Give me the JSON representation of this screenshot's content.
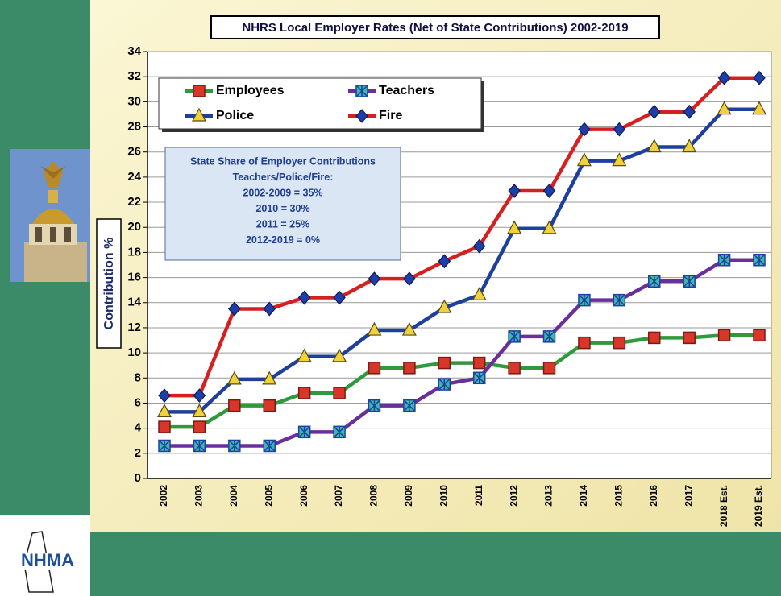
{
  "chart_data": {
    "type": "line",
    "title": "NHRS  Local Employer Rates (Net of State Contributions) 2002-2019",
    "y_label": "Contribution %",
    "categories": [
      "2002",
      "2003",
      "2004",
      "2005",
      "2006",
      "2007",
      "2008",
      "2009",
      "2010",
      "2011",
      "2012",
      "2013",
      "2014",
      "2015",
      "2016",
      "2017",
      "2018 Est.",
      "2019 Est."
    ],
    "series": [
      {
        "name": "Employees",
        "color": "#2f9a3c",
        "marker": "square",
        "marker_color": "#d8362a",
        "values": [
          4.1,
          4.1,
          5.8,
          5.8,
          6.8,
          6.8,
          8.8,
          8.8,
          9.2,
          9.2,
          8.8,
          8.8,
          10.8,
          10.8,
          11.2,
          11.2,
          11.4,
          11.4
        ]
      },
      {
        "name": "Teachers",
        "color": "#6a2f9a",
        "marker": "xsquare",
        "marker_color": "#3cb9a6",
        "values": [
          2.6,
          2.6,
          2.6,
          2.6,
          3.7,
          3.7,
          5.8,
          5.8,
          7.5,
          8.0,
          11.3,
          11.3,
          14.2,
          14.2,
          15.7,
          15.7,
          17.4,
          17.4
        ]
      },
      {
        "name": "Police",
        "color": "#1f3f9f",
        "marker": "triangle",
        "marker_color": "#f0d23c",
        "values": [
          5.3,
          5.3,
          7.9,
          7.9,
          9.7,
          9.7,
          11.8,
          11.8,
          13.6,
          14.6,
          19.9,
          19.9,
          25.3,
          25.3,
          26.4,
          26.4,
          29.4,
          29.4
        ]
      },
      {
        "name": "Fire",
        "color": "#d62020",
        "marker": "diamond",
        "marker_color": "#1e3ea8",
        "values": [
          6.6,
          6.6,
          13.5,
          13.5,
          14.4,
          14.4,
          15.9,
          15.9,
          17.3,
          18.5,
          22.9,
          22.9,
          27.8,
          27.8,
          29.2,
          29.2,
          31.9,
          31.9
        ]
      }
    ],
    "ylim": [
      0,
      34
    ],
    "yticks": [
      0,
      2,
      4,
      6,
      8,
      10,
      12,
      14,
      16,
      18,
      20,
      22,
      24,
      26,
      28,
      30,
      32,
      34
    ],
    "grid": true,
    "annotation": [
      "State Share of Employer Contributions",
      "Teachers/Police/Fire:",
      "2002-2009 = 35%",
      "2010 = 30%",
      "2011 = 25%",
      "2012-2019 = 0%"
    ]
  },
  "logo": "NHMA"
}
